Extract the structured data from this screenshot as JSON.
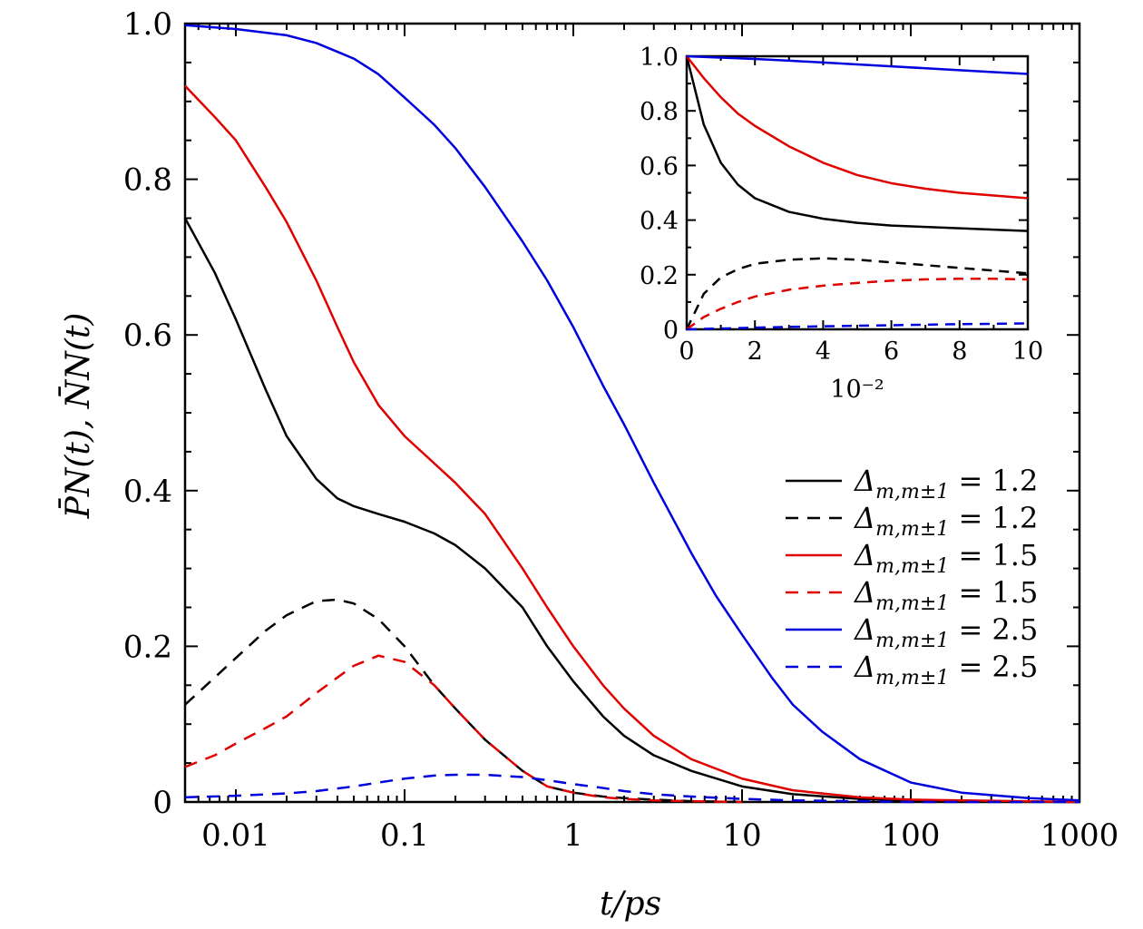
{
  "chart_data": [
    {
      "id": "main",
      "type": "line",
      "xscale": "log",
      "xlim": [
        0.005,
        1000
      ],
      "ylim": [
        0,
        1.0
      ],
      "xlabel": "t/ps",
      "ylabel": "P̄N(t), N̄N(t)",
      "xticks": [
        0.01,
        0.1,
        1,
        10,
        100,
        1000
      ],
      "xtick_labels": [
        "0.01",
        "0.1",
        "1",
        "10",
        "100",
        "1000"
      ],
      "yticks": [
        0,
        0.2,
        0.4,
        0.6,
        0.8,
        1.0
      ],
      "ytick_labels": [
        "0",
        "0.2",
        "0.4",
        "0.6",
        "0.8",
        "1.0"
      ],
      "legend_position": "center-right",
      "series": [
        {
          "name": "Δm,m±1 = 1.2",
          "color": "#000000",
          "dash": "solid",
          "x": [
            0.005,
            0.0075,
            0.01,
            0.015,
            0.02,
            0.03,
            0.04,
            0.05,
            0.07,
            0.1,
            0.15,
            0.2,
            0.3,
            0.5,
            0.7,
            1,
            1.5,
            2,
            3,
            5,
            10,
            20,
            50,
            100,
            1000
          ],
          "y": [
            0.75,
            0.68,
            0.62,
            0.53,
            0.47,
            0.415,
            0.39,
            0.38,
            0.37,
            0.36,
            0.345,
            0.33,
            0.3,
            0.25,
            0.2,
            0.155,
            0.11,
            0.085,
            0.06,
            0.04,
            0.02,
            0.01,
            0.004,
            0.002,
            0.0
          ]
        },
        {
          "name": "Δm,m±1 = 1.2",
          "color": "#000000",
          "dash": "dashed",
          "x": [
            0.005,
            0.0075,
            0.01,
            0.015,
            0.02,
            0.03,
            0.04,
            0.05,
            0.07,
            0.1,
            0.15,
            0.2,
            0.3,
            0.5,
            0.7,
            1,
            1.5,
            2,
            3,
            5,
            10
          ],
          "y": [
            0.125,
            0.16,
            0.185,
            0.22,
            0.24,
            0.258,
            0.26,
            0.255,
            0.235,
            0.2,
            0.15,
            0.12,
            0.08,
            0.04,
            0.02,
            0.012,
            0.007,
            0.005,
            0.003,
            0.001,
            0.0
          ]
        },
        {
          "name": "Δm,m±1 = 1.5",
          "color": "#e00000",
          "dash": "solid",
          "x": [
            0.005,
            0.0075,
            0.01,
            0.015,
            0.02,
            0.03,
            0.04,
            0.05,
            0.07,
            0.1,
            0.15,
            0.2,
            0.3,
            0.5,
            0.7,
            1,
            1.5,
            2,
            3,
            5,
            10,
            20,
            50,
            100,
            1000
          ],
          "y": [
            0.92,
            0.88,
            0.85,
            0.79,
            0.745,
            0.67,
            0.61,
            0.565,
            0.51,
            0.47,
            0.435,
            0.41,
            0.37,
            0.3,
            0.25,
            0.2,
            0.15,
            0.12,
            0.085,
            0.055,
            0.03,
            0.015,
            0.006,
            0.003,
            0.0
          ]
        },
        {
          "name": "Δm,m±1 = 1.5",
          "color": "#e00000",
          "dash": "dashed",
          "x": [
            0.005,
            0.0075,
            0.01,
            0.015,
            0.02,
            0.03,
            0.04,
            0.05,
            0.07,
            0.1,
            0.15,
            0.2,
            0.3,
            0.5,
            0.7,
            1,
            1.5,
            2,
            3,
            5,
            10
          ],
          "y": [
            0.045,
            0.06,
            0.075,
            0.095,
            0.11,
            0.14,
            0.16,
            0.175,
            0.188,
            0.18,
            0.15,
            0.12,
            0.08,
            0.04,
            0.02,
            0.012,
            0.006,
            0.004,
            0.002,
            0.001,
            0.0
          ]
        },
        {
          "name": "Δm,m±1 = 2.5",
          "color": "#0000dd",
          "dash": "solid",
          "x": [
            0.005,
            0.01,
            0.02,
            0.03,
            0.05,
            0.07,
            0.1,
            0.15,
            0.2,
            0.3,
            0.5,
            0.7,
            1,
            1.5,
            2,
            3,
            5,
            7,
            10,
            15,
            20,
            30,
            50,
            100,
            200,
            500,
            1000
          ],
          "y": [
            0.998,
            0.993,
            0.985,
            0.975,
            0.955,
            0.935,
            0.905,
            0.87,
            0.84,
            0.79,
            0.72,
            0.67,
            0.61,
            0.535,
            0.485,
            0.41,
            0.32,
            0.265,
            0.215,
            0.16,
            0.125,
            0.09,
            0.055,
            0.025,
            0.012,
            0.005,
            0.002
          ]
        },
        {
          "name": "Δm,m±1 = 2.5",
          "color": "#0000dd",
          "dash": "dashed",
          "x": [
            0.005,
            0.01,
            0.02,
            0.03,
            0.05,
            0.07,
            0.1,
            0.15,
            0.2,
            0.3,
            0.5,
            0.7,
            1,
            1.5,
            2,
            3,
            5,
            10,
            20,
            50,
            100,
            1000
          ],
          "y": [
            0.006,
            0.008,
            0.011,
            0.014,
            0.02,
            0.025,
            0.03,
            0.034,
            0.035,
            0.035,
            0.032,
            0.028,
            0.023,
            0.018,
            0.014,
            0.01,
            0.007,
            0.004,
            0.002,
            0.001,
            0.0,
            0.0
          ]
        }
      ]
    },
    {
      "id": "inset",
      "type": "line",
      "xlim": [
        0,
        10
      ],
      "ylim": [
        0,
        1.0
      ],
      "xlabel": "10⁻²",
      "xticks": [
        0,
        2,
        4,
        6,
        8,
        10
      ],
      "xtick_labels": [
        "0",
        "2",
        "4",
        "6",
        "8",
        "10"
      ],
      "yticks": [
        0,
        0.2,
        0.4,
        0.6,
        0.8,
        1.0
      ],
      "ytick_labels": [
        "0",
        "0.2",
        "0.4",
        "0.6",
        "0.8",
        "1.0"
      ],
      "series": [
        {
          "name": "Δm,m±1 = 1.2",
          "color": "#000000",
          "dash": "solid",
          "x": [
            0,
            0.5,
            1,
            1.5,
            2,
            3,
            4,
            5,
            6,
            7,
            8,
            9,
            10
          ],
          "y": [
            1.0,
            0.75,
            0.61,
            0.53,
            0.48,
            0.43,
            0.405,
            0.39,
            0.38,
            0.375,
            0.37,
            0.365,
            0.36
          ]
        },
        {
          "name": "Δm,m±1 = 1.2",
          "color": "#000000",
          "dash": "dashed",
          "x": [
            0,
            0.5,
            1,
            1.5,
            2,
            3,
            4,
            5,
            6,
            7,
            8,
            9,
            10
          ],
          "y": [
            0.0,
            0.13,
            0.19,
            0.22,
            0.24,
            0.255,
            0.26,
            0.255,
            0.245,
            0.235,
            0.225,
            0.215,
            0.205
          ]
        },
        {
          "name": "Δm,m±1 = 1.5",
          "color": "#e00000",
          "dash": "solid",
          "x": [
            0,
            0.5,
            1,
            1.5,
            2,
            3,
            4,
            5,
            6,
            7,
            8,
            9,
            10
          ],
          "y": [
            1.0,
            0.92,
            0.85,
            0.79,
            0.745,
            0.67,
            0.61,
            0.565,
            0.535,
            0.515,
            0.5,
            0.49,
            0.48
          ]
        },
        {
          "name": "Δm,m±1 = 1.5",
          "color": "#e00000",
          "dash": "dashed",
          "x": [
            0,
            0.5,
            1,
            1.5,
            2,
            3,
            4,
            5,
            6,
            7,
            8,
            9,
            10
          ],
          "y": [
            0.0,
            0.045,
            0.075,
            0.1,
            0.12,
            0.145,
            0.16,
            0.17,
            0.178,
            0.183,
            0.185,
            0.185,
            0.183
          ]
        },
        {
          "name": "Δm,m±1 = 2.5",
          "color": "#0000dd",
          "dash": "solid",
          "x": [
            0,
            1,
            2,
            3,
            4,
            5,
            6,
            7,
            8,
            9,
            10
          ],
          "y": [
            1.0,
            0.995,
            0.99,
            0.984,
            0.977,
            0.97,
            0.963,
            0.956,
            0.949,
            0.942,
            0.935
          ]
        },
        {
          "name": "Δm,m±1 = 2.5",
          "color": "#0000dd",
          "dash": "dashed",
          "x": [
            0,
            1,
            2,
            3,
            4,
            5,
            6,
            7,
            8,
            9,
            10
          ],
          "y": [
            0.0,
            0.003,
            0.006,
            0.009,
            0.011,
            0.013,
            0.015,
            0.017,
            0.019,
            0.02,
            0.022
          ]
        }
      ]
    }
  ],
  "legend": {
    "entries": [
      {
        "symbol": "Δ",
        "subscript": "m,m±1",
        "value": "= 1.2",
        "color": "#000000",
        "dash": "solid"
      },
      {
        "symbol": "Δ",
        "subscript": "m,m±1",
        "value": "= 1.2",
        "color": "#000000",
        "dash": "dashed"
      },
      {
        "symbol": "Δ",
        "subscript": "m,m±1",
        "value": "= 1.5",
        "color": "#e00000",
        "dash": "solid"
      },
      {
        "symbol": "Δ",
        "subscript": "m,m±1",
        "value": "= 1.5",
        "color": "#e00000",
        "dash": "dashed"
      },
      {
        "symbol": "Δ",
        "subscript": "m,m±1",
        "value": "= 2.5",
        "color": "#0000dd",
        "dash": "solid"
      },
      {
        "symbol": "Δ",
        "subscript": "m,m±1",
        "value": "= 2.5",
        "color": "#0000dd",
        "dash": "dashed"
      }
    ]
  }
}
